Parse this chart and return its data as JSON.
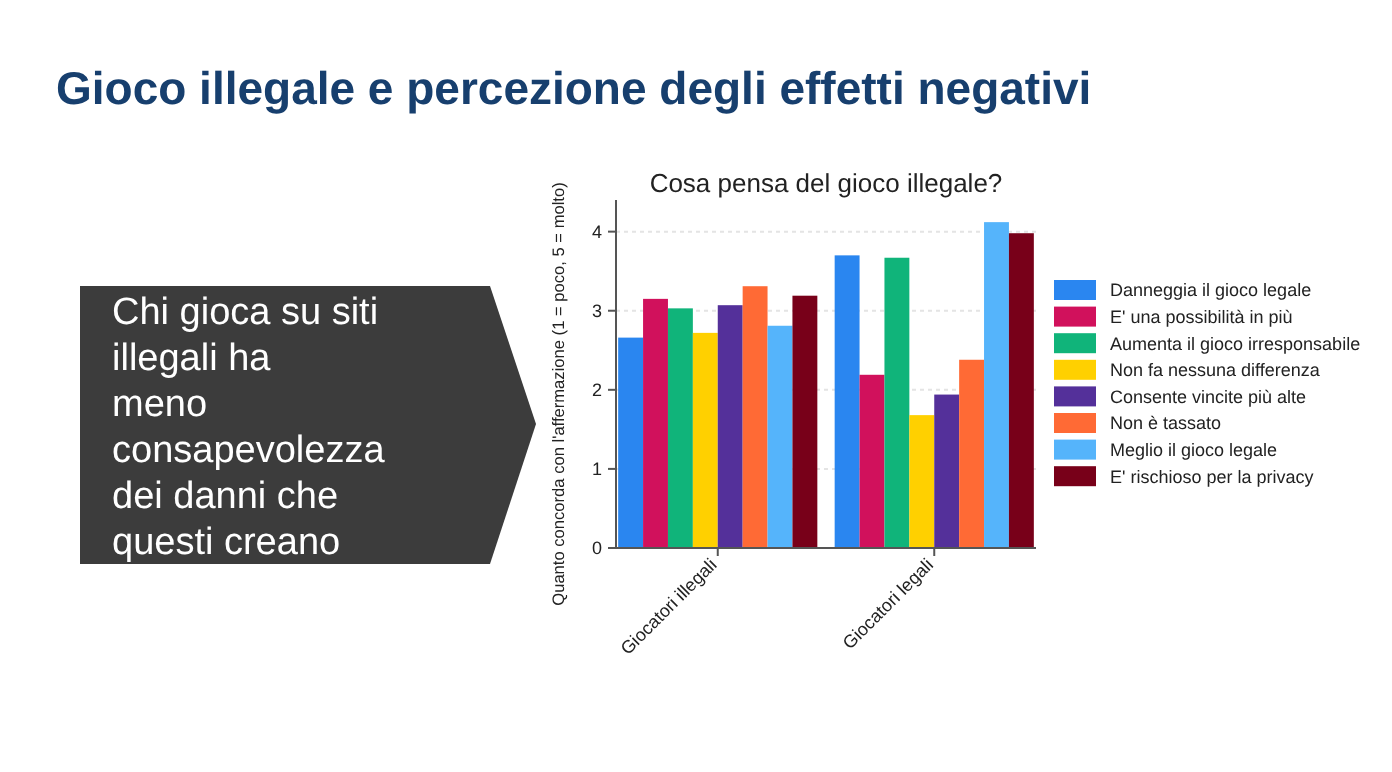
{
  "chart_data": {
    "type": "bar",
    "title": "Gioco illegale e percezione degli effetti negativi",
    "subtitle": "Cosa pensa del gioco illegale?",
    "ylabel": "Quanto concorda con l'affermazione (1 = poco, 5 = molto)",
    "annotations": [
      "Chi gioca su siti\nillegali ha\nmeno\nconsapevolezza\ndei danni che\nquesti creano"
    ],
    "categories": [
      "Giocatori illegali",
      "Giocatori legali"
    ],
    "series": [
      {
        "name": "Danneggia il gioco legale",
        "color": "#2a86f0",
        "values": [
          2.66,
          3.7
        ]
      },
      {
        "name": "E' una possibilità in più",
        "color": "#d1115c",
        "values": [
          3.15,
          2.19
        ]
      },
      {
        "name": "Aumenta il gioco irresponsabile",
        "color": "#10b47a",
        "values": [
          3.03,
          3.67
        ]
      },
      {
        "name": "Non fa nessuna differenza",
        "color": "#ffd000",
        "values": [
          2.72,
          1.68
        ]
      },
      {
        "name": "Consente vincite più alte",
        "color": "#54309a",
        "values": [
          3.07,
          1.94
        ]
      },
      {
        "name": "Non è tassato",
        "color": "#ff6a35",
        "values": [
          3.31,
          2.38
        ]
      },
      {
        "name": "Meglio il gioco legale",
        "color": "#55b4fb",
        "values": [
          2.81,
          4.12
        ]
      },
      {
        "name": "E' rischioso per la privacy",
        "color": "#780019",
        "values": [
          3.19,
          3.98
        ]
      }
    ],
    "ylim": [
      0,
      4.4
    ],
    "yticks": [
      0,
      1,
      2,
      3,
      4
    ],
    "grid": "y",
    "legend": "right"
  }
}
